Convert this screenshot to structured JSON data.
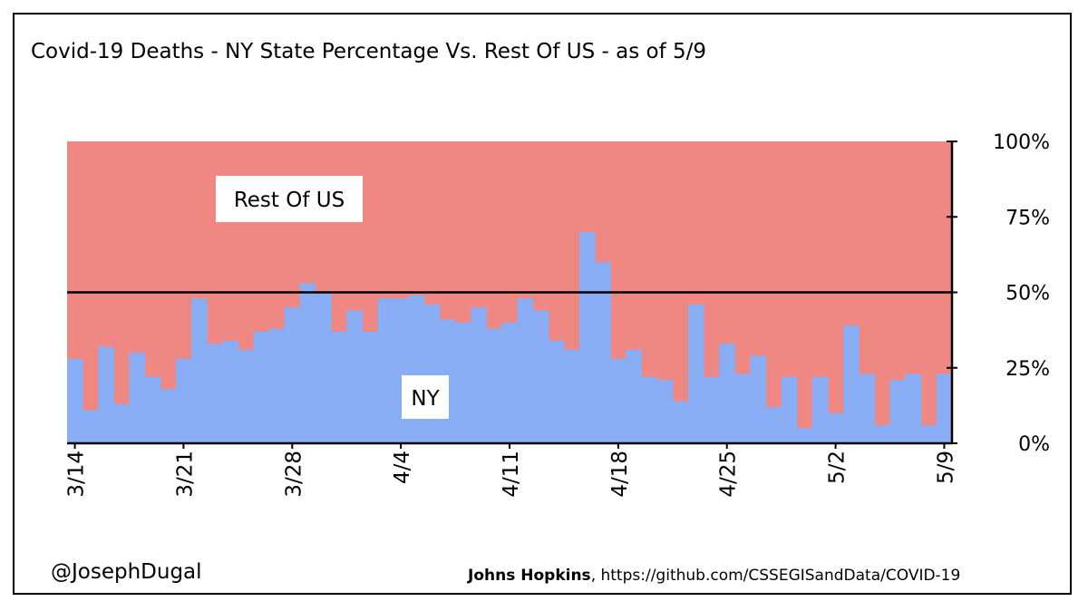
{
  "chart_data": {
    "type": "area",
    "stacked": true,
    "percent": true,
    "title": "Covid-19 Deaths - NY State Percentage Vs. Rest Of US - as of 5/9",
    "x_start": "3/14",
    "x_end": "5/9",
    "x_tick_labels": [
      "3/14",
      "3/21",
      "3/28",
      "4/4",
      "4/11",
      "4/18",
      "4/25",
      "5/2",
      "5/9"
    ],
    "ylim": [
      0,
      100
    ],
    "y_tick_labels": [
      "0%",
      "25%",
      "50%",
      "75%",
      "100%"
    ],
    "y_ticks": [
      0,
      25,
      50,
      75,
      100
    ],
    "reference_line": 50,
    "series": [
      {
        "name": "NY",
        "color": "#8aaef5",
        "values": [
          28,
          11,
          32,
          13,
          30,
          22,
          18,
          28,
          48,
          33,
          34,
          31,
          37,
          38,
          45,
          53,
          50,
          37,
          44,
          37,
          48,
          48,
          49,
          46,
          41,
          40,
          45,
          38,
          40,
          48,
          44,
          34,
          31,
          70,
          60,
          28,
          31,
          22,
          21,
          14,
          46,
          22,
          33,
          23,
          29,
          12,
          22,
          5,
          22,
          10,
          39,
          23,
          6,
          21,
          23,
          6,
          23
        ]
      },
      {
        "name": "Rest Of US",
        "color": "#ef8883"
      }
    ],
    "labels": {
      "ny": "NY",
      "rest": "Rest Of US"
    }
  },
  "footer": {
    "credit": "@JosephDugal",
    "source_name": "Johns Hopkins",
    "source_rest": ", https://github.com/CSSEGISandData/COVID-19"
  },
  "colors": {
    "ny": "#8aaef5",
    "rest": "#ef8883",
    "line": "#000000"
  }
}
